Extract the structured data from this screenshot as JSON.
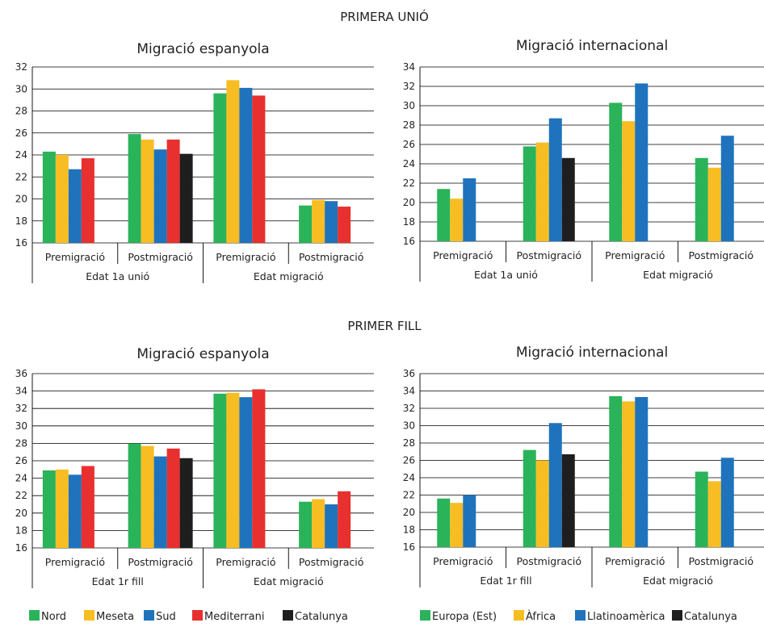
{
  "sections": [
    {
      "title": "PRIMERA UNIÓ"
    },
    {
      "title": "PRIMER FILL"
    }
  ],
  "legends": {
    "spanish": [
      {
        "label": "Nord",
        "color": "#2bb35a"
      },
      {
        "label": "Meseta",
        "color": "#f7bd22"
      },
      {
        "label": "Sud",
        "color": "#1f73bd"
      },
      {
        "label": "Mediterrani",
        "color": "#e8302e"
      },
      {
        "label": "Catalunya",
        "color": "#1e1e1e"
      }
    ],
    "international": [
      {
        "label": "Europa (Est)",
        "color": "#2bb35a"
      },
      {
        "label": "Àfrica",
        "color": "#f7bd22"
      },
      {
        "label": "Llatinoamèrica",
        "color": "#1f73bd"
      },
      {
        "label": "Catalunya",
        "color": "#1e1e1e"
      }
    ]
  },
  "chart_data": [
    {
      "type": "bar",
      "title": "Migració espanyola",
      "categories": [
        "Premigració",
        "Postmigració",
        "Premigració",
        "Postmigració"
      ],
      "groups": [
        {
          "label": "Edat 1a unió",
          "span": 2
        },
        {
          "label": "Edat migració",
          "span": 2
        }
      ],
      "ylim": [
        16,
        32
      ],
      "yticks": [
        16,
        18,
        20,
        22,
        24,
        26,
        28,
        30,
        32
      ],
      "grid": true,
      "series": [
        {
          "name": "Nord",
          "color": "#2bb35a",
          "values": [
            24.3,
            25.9,
            29.6,
            19.4
          ]
        },
        {
          "name": "Meseta",
          "color": "#f7bd22",
          "values": [
            24.0,
            25.4,
            30.8,
            19.9
          ]
        },
        {
          "name": "Sud",
          "color": "#1f73bd",
          "values": [
            22.7,
            24.5,
            30.1,
            19.8
          ]
        },
        {
          "name": "Mediterrani",
          "color": "#e8302e",
          "values": [
            23.7,
            25.4,
            29.4,
            19.3
          ]
        },
        {
          "name": "Catalunya",
          "color": "#1e1e1e",
          "values": [
            null,
            24.1,
            null,
            null
          ]
        }
      ]
    },
    {
      "type": "bar",
      "title": "Migració internacional",
      "categories": [
        "Premigració",
        "Postmigració",
        "Premigració",
        "Postmigració"
      ],
      "groups": [
        {
          "label": "Edat 1a unió",
          "span": 2
        },
        {
          "label": "Edat migració",
          "span": 2
        }
      ],
      "ylim": [
        16,
        34
      ],
      "yticks": [
        16,
        18,
        20,
        22,
        24,
        26,
        28,
        30,
        32,
        34
      ],
      "grid": true,
      "series": [
        {
          "name": "Europa (Est)",
          "color": "#2bb35a",
          "values": [
            21.4,
            25.8,
            30.3,
            24.6
          ]
        },
        {
          "name": "Àfrica",
          "color": "#f7bd22",
          "values": [
            20.4,
            26.2,
            28.4,
            23.6
          ]
        },
        {
          "name": "Llatinoamèrica",
          "color": "#1f73bd",
          "values": [
            22.5,
            28.7,
            32.3,
            26.9
          ]
        },
        {
          "name": "Catalunya",
          "color": "#1e1e1e",
          "values": [
            null,
            24.6,
            null,
            null
          ]
        }
      ]
    },
    {
      "type": "bar",
      "title": "Migració espanyola",
      "categories": [
        "Premigració",
        "Postmigració",
        "Premigració",
        "Postmigració"
      ],
      "groups": [
        {
          "label": "Edat 1r fill",
          "span": 2
        },
        {
          "label": "Edat migració",
          "span": 2
        }
      ],
      "ylim": [
        16,
        36
      ],
      "yticks": [
        16,
        18,
        20,
        22,
        24,
        26,
        28,
        30,
        32,
        34,
        36
      ],
      "grid": true,
      "series": [
        {
          "name": "Nord",
          "color": "#2bb35a",
          "values": [
            24.9,
            28.0,
            33.7,
            21.3
          ]
        },
        {
          "name": "Meseta",
          "color": "#f7bd22",
          "values": [
            25.0,
            27.7,
            33.8,
            21.6
          ]
        },
        {
          "name": "Sud",
          "color": "#1f73bd",
          "values": [
            24.4,
            26.5,
            33.3,
            21.0
          ]
        },
        {
          "name": "Mediterrani",
          "color": "#e8302e",
          "values": [
            25.4,
            27.4,
            34.2,
            22.5
          ]
        },
        {
          "name": "Catalunya",
          "color": "#1e1e1e",
          "values": [
            null,
            26.3,
            null,
            null
          ]
        }
      ]
    },
    {
      "type": "bar",
      "title": "Migració internacional",
      "categories": [
        "Premigració",
        "Postmigració",
        "Premigració",
        "Postmigració"
      ],
      "groups": [
        {
          "label": "Edat 1r fill",
          "span": 2
        },
        {
          "label": "Edat migració",
          "span": 2
        }
      ],
      "ylim": [
        16,
        36
      ],
      "yticks": [
        16,
        18,
        20,
        22,
        24,
        26,
        28,
        30,
        32,
        34,
        36
      ],
      "grid": true,
      "series": [
        {
          "name": "Europa (Est)",
          "color": "#2bb35a",
          "values": [
            21.6,
            27.2,
            33.4,
            24.7
          ]
        },
        {
          "name": "Àfrica",
          "color": "#f7bd22",
          "values": [
            21.1,
            26.0,
            32.8,
            23.6
          ]
        },
        {
          "name": "Llatinoamèrica",
          "color": "#1f73bd",
          "values": [
            22.0,
            30.3,
            33.3,
            26.3
          ]
        },
        {
          "name": "Catalunya",
          "color": "#1e1e1e",
          "values": [
            null,
            26.7,
            null,
            null
          ]
        }
      ]
    }
  ]
}
